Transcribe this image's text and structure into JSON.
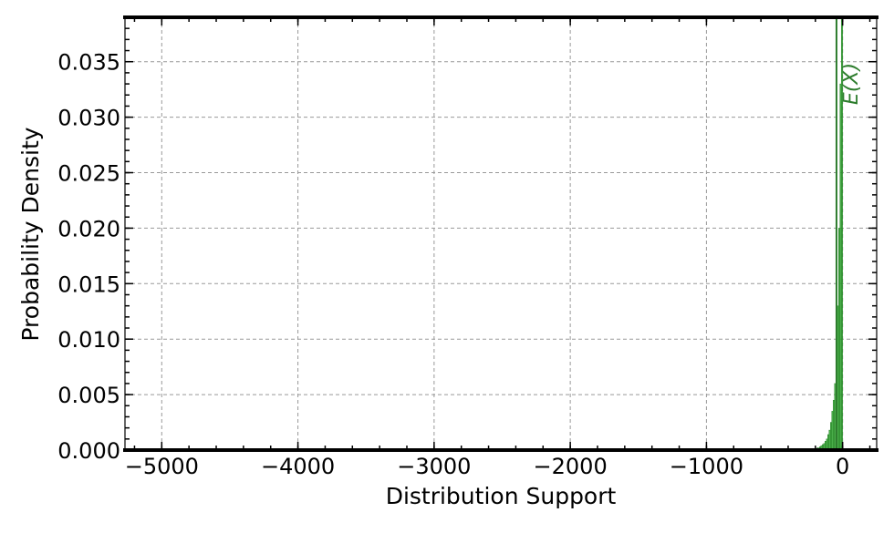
{
  "chart_data": {
    "type": "bar",
    "subtype": "histogram",
    "title": "",
    "xlabel": "Distribution Support",
    "ylabel": "Probability Density",
    "xlim": [
      -5270,
      250
    ],
    "ylim": [
      0,
      0.039
    ],
    "x_ticks": [
      -5000,
      -4000,
      -3000,
      -2000,
      -1000,
      0
    ],
    "x_tick_labels": [
      "−5000",
      "−4000",
      "−3000",
      "−2000",
      "−1000",
      "0"
    ],
    "y_ticks": [
      0.0,
      0.005,
      0.01,
      0.015,
      0.02,
      0.025,
      0.03,
      0.035
    ],
    "y_tick_labels": [
      "0.000",
      "0.005",
      "0.010",
      "0.015",
      "0.020",
      "0.025",
      "0.030",
      "0.035"
    ],
    "x_minor_step": 200,
    "y_minor_step": 0.001,
    "grid": true,
    "bin_width": 10,
    "bins": [
      {
        "x": -200,
        "density": 0.0001
      },
      {
        "x": -190,
        "density": 0.0002
      },
      {
        "x": -180,
        "density": 0.0002
      },
      {
        "x": -170,
        "density": 0.0003
      },
      {
        "x": -160,
        "density": 0.0004
      },
      {
        "x": -150,
        "density": 0.0005
      },
      {
        "x": -140,
        "density": 0.0006
      },
      {
        "x": -130,
        "density": 0.0008
      },
      {
        "x": -120,
        "density": 0.001
      },
      {
        "x": -110,
        "density": 0.0014
      },
      {
        "x": -100,
        "density": 0.0018
      },
      {
        "x": -90,
        "density": 0.0025
      },
      {
        "x": -80,
        "density": 0.0035
      },
      {
        "x": -70,
        "density": 0.0045
      },
      {
        "x": -60,
        "density": 0.006
      },
      {
        "x": -50,
        "density": 0.009
      },
      {
        "x": -40,
        "density": 0.013
      },
      {
        "x": -30,
        "density": 0.02
      },
      {
        "x": -20,
        "density": 0.033
      },
      {
        "x": -10,
        "density": 0.039
      }
    ],
    "bar_color": "#2ca02c",
    "bar_edge_color": "#1e7a1e",
    "mean_line": {
      "x": -45,
      "label": "E(X)",
      "color": "#2e7d2e"
    }
  }
}
